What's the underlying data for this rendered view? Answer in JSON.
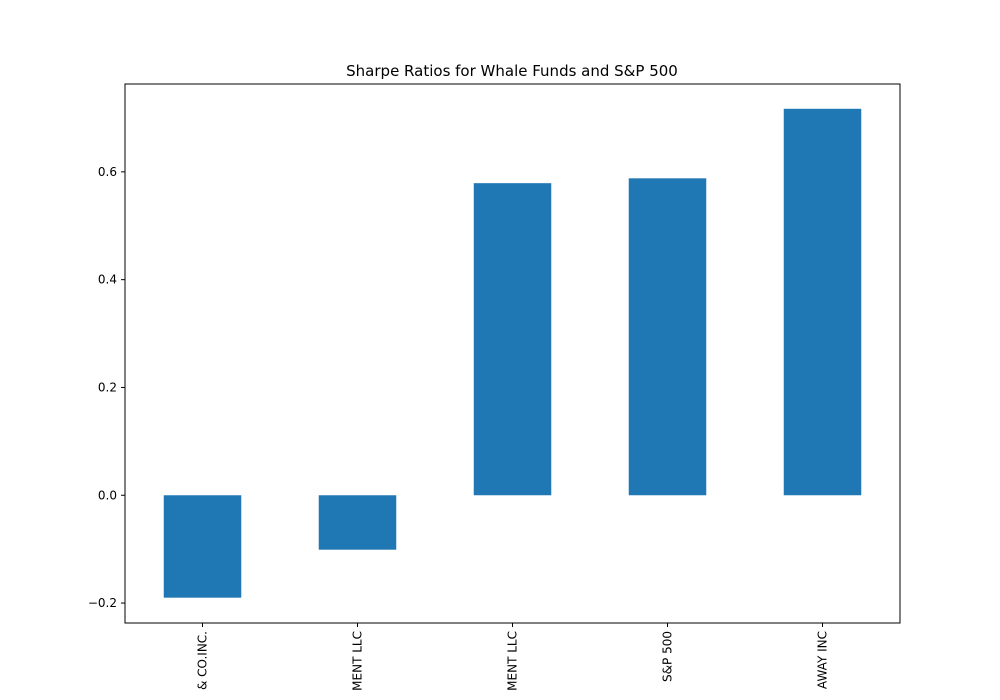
{
  "chart_data": {
    "type": "bar",
    "title": "Sharpe Ratios for Whale Funds and S&P 500",
    "xlabel": "",
    "ylabel": "",
    "categories": [
      "& CO.INC.",
      "MENT LLC",
      "MENT LLC",
      "S&P 500",
      "AWAY INC"
    ],
    "values": [
      -0.19,
      -0.101,
      0.579,
      0.588,
      0.717
    ],
    "ylim": [
      -0.237,
      0.763
    ],
    "yticks": [
      -0.2,
      0.0,
      0.2,
      0.4,
      0.6
    ],
    "ytick_labels": [
      "−0.2",
      "0.0",
      "0.2",
      "0.4",
      "0.6"
    ],
    "bar_color": "#1f77b4",
    "grid": false,
    "legend": "none"
  }
}
